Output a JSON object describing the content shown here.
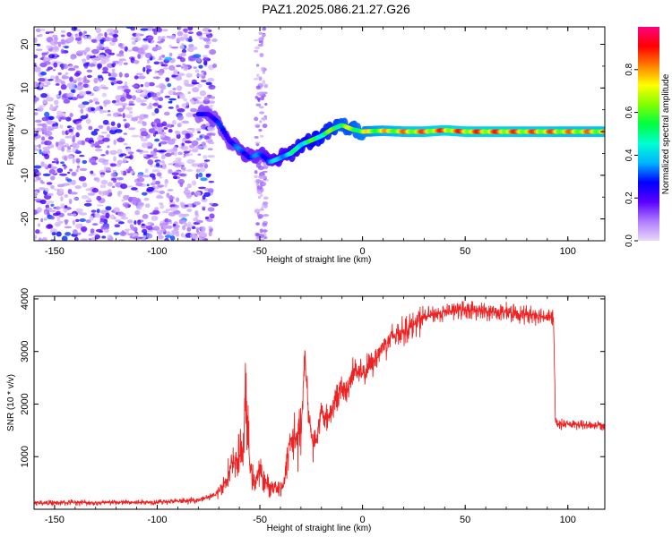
{
  "title": "PAZ1.2025.086.21.27.G26",
  "chart_data": [
    {
      "type": "heatmap",
      "title": "PAZ1.2025.086.21.27.G26",
      "xlabel": "Height of straight line (km)",
      "ylabel": "Frequency (Hz)",
      "xlim": [
        -160,
        118
      ],
      "ylim": [
        -25,
        24
      ],
      "xticks": [
        -150,
        -100,
        -50,
        0,
        50,
        100
      ],
      "yticks": [
        -20,
        -10,
        0,
        10,
        20
      ],
      "grid": false,
      "colorbar": {
        "label": "Normalized spectral amplitude",
        "range": [
          0.0,
          1.0
        ],
        "ticks": [
          0.0,
          0.2,
          0.4,
          0.6,
          0.8
        ],
        "colors": [
          "#e9d8f7",
          "#b07cff",
          "#5a00ff",
          "#0000ff",
          "#00b4ff",
          "#00ffd0",
          "#00ff40",
          "#80ff00",
          "#ffff00",
          "#ff8000",
          "#ff0000",
          "#ff0080"
        ]
      },
      "ridge": {
        "x": [
          -80,
          -75,
          -70,
          -65,
          -60,
          -55,
          -50,
          -45,
          -40,
          -35,
          -30,
          -25,
          -20,
          -15,
          -10,
          -5,
          0,
          10,
          20,
          30,
          40,
          50,
          60,
          70,
          80,
          90,
          100,
          110,
          118
        ],
        "frequency": [
          4,
          4,
          2,
          -2,
          -4,
          -6,
          -5,
          -7,
          -6,
          -5,
          -3,
          -2,
          -1,
          0.5,
          1.5,
          0.5,
          0,
          0.2,
          0,
          0,
          0.3,
          0,
          0,
          0,
          0,
          0,
          0,
          0,
          0
        ],
        "amplitude": [
          0.25,
          0.3,
          0.3,
          0.3,
          0.35,
          0.35,
          0.35,
          0.4,
          0.45,
          0.5,
          0.55,
          0.6,
          0.62,
          0.65,
          0.7,
          0.7,
          0.75,
          0.8,
          0.85,
          0.88,
          0.9,
          0.9,
          0.9,
          0.9,
          0.88,
          0.88,
          0.85,
          0.85,
          0.85
        ]
      },
      "noise_region_x": [
        -160,
        -72
      ]
    },
    {
      "type": "line",
      "xlabel": "Height of straight line (km)",
      "ylabel": "SNR (10 * v/v)",
      "xlim": [
        -160,
        118
      ],
      "ylim": [
        0,
        4050
      ],
      "xticks": [
        -150,
        -100,
        -50,
        0,
        50,
        100
      ],
      "yticks": [
        1000,
        2000,
        3000,
        4000
      ],
      "grid": false,
      "series": [
        {
          "color": "#ee2222",
          "x": [
            -160,
            -150,
            -140,
            -130,
            -120,
            -110,
            -100,
            -90,
            -85,
            -80,
            -76,
            -72,
            -70,
            -68,
            -66,
            -64,
            -62,
            -60,
            -58,
            -57,
            -55,
            -53,
            -50,
            -47,
            -45,
            -43,
            -40,
            -38,
            -36,
            -34,
            -32,
            -30,
            -28,
            -26,
            -24,
            -22,
            -20,
            -18,
            -16,
            -14,
            -12,
            -10,
            -8,
            -6,
            -4,
            -2,
            0,
            5,
            10,
            15,
            20,
            25,
            30,
            35,
            40,
            45,
            50,
            55,
            60,
            65,
            70,
            75,
            80,
            85,
            90,
            93,
            94,
            95,
            100,
            105,
            110,
            118
          ],
          "y": [
            120,
            120,
            130,
            120,
            130,
            130,
            140,
            150,
            160,
            180,
            220,
            260,
            350,
            450,
            600,
            800,
            900,
            1000,
            1200,
            2200,
            900,
            500,
            700,
            500,
            400,
            450,
            420,
            480,
            1200,
            1400,
            1300,
            1500,
            2900,
            1700,
            1200,
            1400,
            1900,
            1700,
            1800,
            2000,
            2200,
            2300,
            2200,
            2450,
            2700,
            2600,
            2550,
            2800,
            3100,
            3300,
            3400,
            3500,
            3650,
            3700,
            3750,
            3780,
            3800,
            3780,
            3760,
            3750,
            3740,
            3720,
            3700,
            3700,
            3650,
            3650,
            1650,
            1620,
            1620,
            1600,
            1600,
            1600
          ]
        }
      ]
    }
  ]
}
